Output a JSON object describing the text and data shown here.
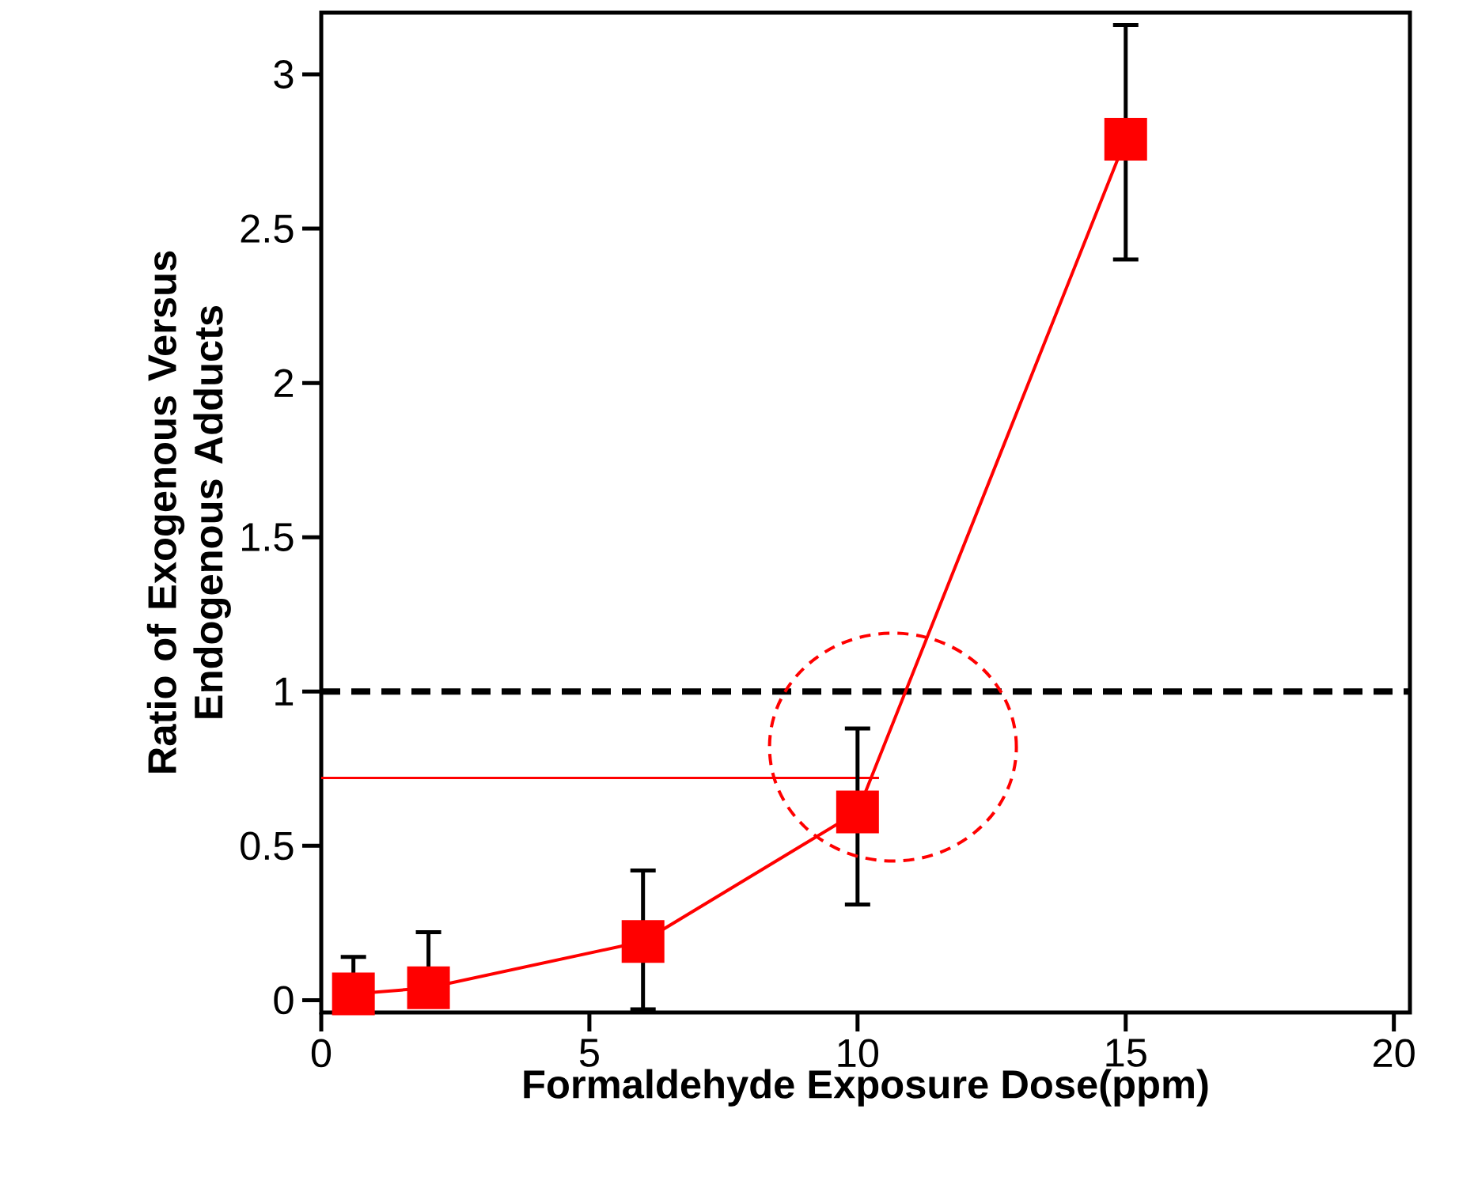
{
  "chart_data": {
    "type": "line",
    "xlabel": "Formaldehyde Exposure Dose(ppm)",
    "ylabel": "Ratio of Exogenous Versus Endogenous Adducts",
    "x": [
      0.6,
      2,
      6,
      10,
      15
    ],
    "series": [
      {
        "color": "#ff0000",
        "values": [
          0.02,
          0.04,
          0.19,
          0.61,
          2.79
        ],
        "errors": [
          [
            0.02,
            0.14
          ],
          [
            0.04,
            0.22
          ],
          [
            -0.03,
            0.42
          ],
          [
            0.31,
            0.88
          ],
          [
            2.4,
            3.16
          ]
        ]
      }
    ],
    "marker": "square",
    "line_style": "solid",
    "xlim": [
      0,
      20.3
    ],
    "ylim": [
      -0.04,
      3.2
    ],
    "xticks": [
      0,
      5,
      10,
      15,
      20
    ],
    "yticks": [
      0,
      0.5,
      1,
      1.5,
      2,
      2.5,
      3
    ],
    "ref_lines": [
      {
        "axis": "y",
        "value": 1,
        "color": "#000000",
        "line_style": "dashed"
      },
      {
        "axis": "y",
        "value": 0.72,
        "color": "#ff0000",
        "line_style": "solid"
      }
    ],
    "grid": false
  }
}
